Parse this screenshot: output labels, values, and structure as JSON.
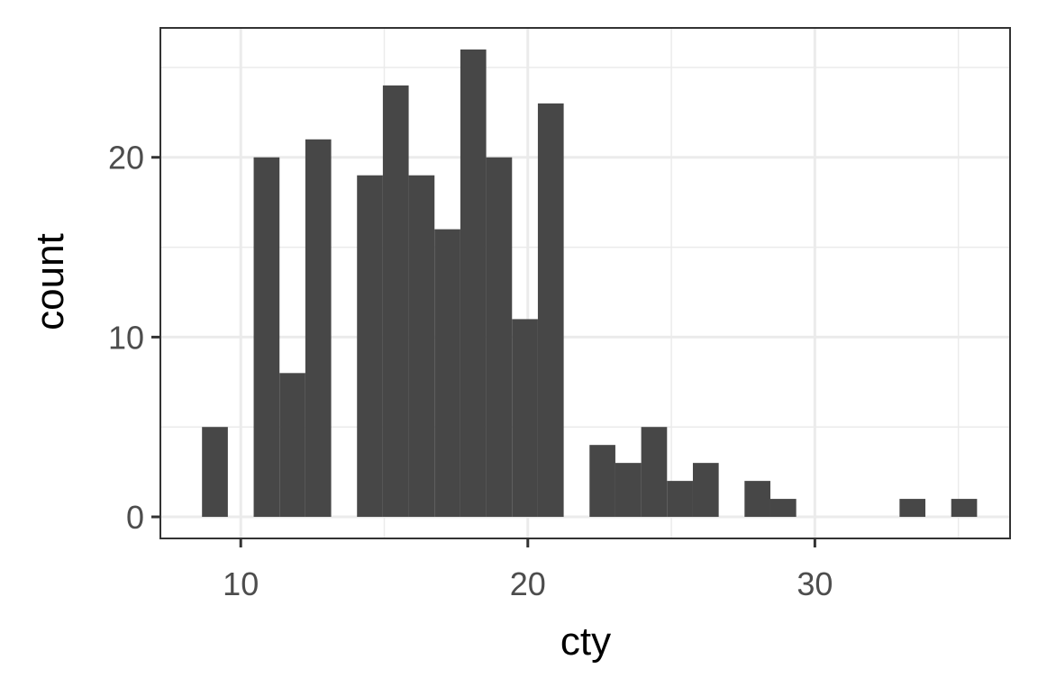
{
  "chart_data": {
    "type": "bar",
    "subtype": "histogram",
    "xlabel": "cty",
    "ylabel": "count",
    "xlim": [
      7.2,
      36.8
    ],
    "ylim": [
      -1.2,
      27.2
    ],
    "x_ticks": [
      10,
      20,
      30
    ],
    "x_tick_labels": [
      "10",
      "20",
      "30"
    ],
    "y_ticks": [
      0,
      10,
      20
    ],
    "y_tick_labels": [
      "0",
      "10",
      "20"
    ],
    "grid": true,
    "legend": "none",
    "bin_width": 0.9,
    "bins": [
      {
        "x": 9.1,
        "count": 5
      },
      {
        "x": 10.0,
        "count": 0
      },
      {
        "x": 10.9,
        "count": 20
      },
      {
        "x": 11.8,
        "count": 8
      },
      {
        "x": 12.7,
        "count": 21
      },
      {
        "x": 13.6,
        "count": 0
      },
      {
        "x": 14.5,
        "count": 19
      },
      {
        "x": 15.4,
        "count": 24
      },
      {
        "x": 16.3,
        "count": 19
      },
      {
        "x": 17.2,
        "count": 16
      },
      {
        "x": 18.1,
        "count": 26
      },
      {
        "x": 19.0,
        "count": 20
      },
      {
        "x": 19.9,
        "count": 11
      },
      {
        "x": 20.8,
        "count": 23
      },
      {
        "x": 21.7,
        "count": 0
      },
      {
        "x": 22.6,
        "count": 4
      },
      {
        "x": 23.5,
        "count": 3
      },
      {
        "x": 24.4,
        "count": 5
      },
      {
        "x": 25.3,
        "count": 2
      },
      {
        "x": 26.2,
        "count": 3
      },
      {
        "x": 27.1,
        "count": 0
      },
      {
        "x": 28.0,
        "count": 2
      },
      {
        "x": 28.9,
        "count": 1
      },
      {
        "x": 29.8,
        "count": 0
      },
      {
        "x": 30.7,
        "count": 0
      },
      {
        "x": 31.6,
        "count": 0
      },
      {
        "x": 32.5,
        "count": 0
      },
      {
        "x": 33.4,
        "count": 1
      },
      {
        "x": 34.3,
        "count": 0
      },
      {
        "x": 35.2,
        "count": 1
      }
    ],
    "colors": {
      "bar_fill": "#474747",
      "panel_border": "#333333",
      "grid_major": "#ebebeb",
      "grid_minor": "#ebebeb",
      "tick_text": "#4d4d4d",
      "axis_title": "#000000",
      "background": "#ffffff"
    }
  }
}
